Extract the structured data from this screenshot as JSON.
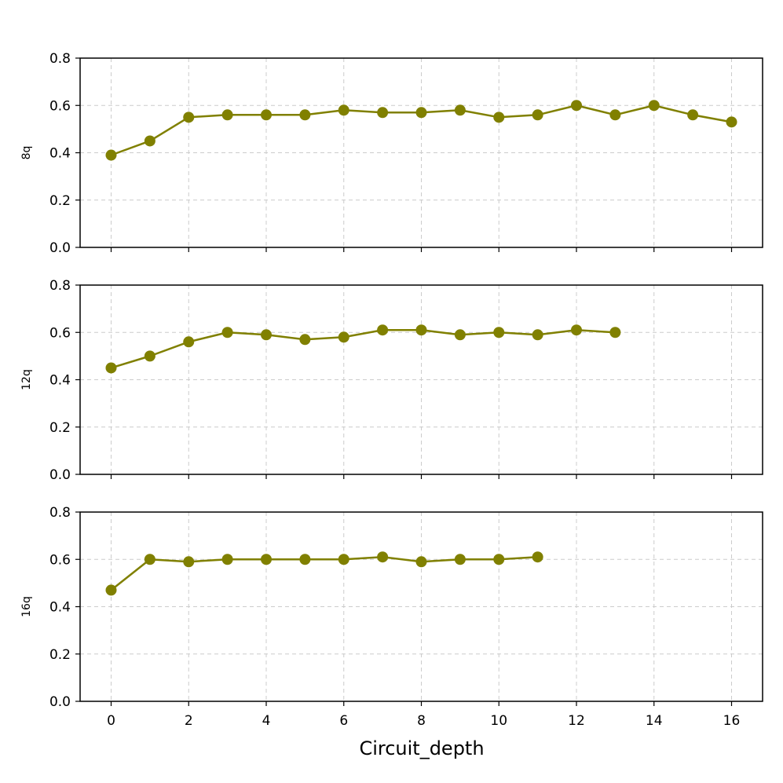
{
  "figure": {
    "line_color": "#808000",
    "grid_color": "#cccccc"
  },
  "chart_data": [
    {
      "type": "line",
      "ylabel": "8q",
      "xlabel": "",
      "x": [
        0,
        1,
        2,
        3,
        4,
        5,
        6,
        7,
        8,
        9,
        10,
        11,
        12,
        13,
        14,
        15,
        16
      ],
      "series": [
        {
          "values": [
            0.39,
            0.45,
            0.55,
            0.56,
            0.56,
            0.56,
            0.58,
            0.57,
            0.57,
            0.58,
            0.55,
            0.56,
            0.6,
            0.56,
            0.6,
            0.56,
            0.53
          ]
        }
      ],
      "xlim": [
        -0.8,
        16.8
      ],
      "ylim": [
        0.0,
        0.8
      ],
      "yticks": [
        "0.0",
        "0.2",
        "0.4",
        "0.6",
        "0.8"
      ],
      "xticks": [
        0,
        2,
        4,
        6,
        8,
        10,
        12,
        14,
        16
      ],
      "grid": true
    },
    {
      "type": "line",
      "ylabel": "12q",
      "xlabel": "",
      "x": [
        0,
        1,
        2,
        3,
        4,
        5,
        6,
        7,
        8,
        9,
        10,
        11,
        12,
        13
      ],
      "series": [
        {
          "values": [
            0.45,
            0.5,
            0.56,
            0.6,
            0.59,
            0.57,
            0.58,
            0.61,
            0.61,
            0.59,
            0.6,
            0.59,
            0.61,
            0.6
          ]
        }
      ],
      "xlim": [
        -0.8,
        16.8
      ],
      "ylim": [
        0.0,
        0.8
      ],
      "yticks": [
        "0.0",
        "0.2",
        "0.4",
        "0.6",
        "0.8"
      ],
      "xticks": [
        0,
        2,
        4,
        6,
        8,
        10,
        12,
        14,
        16
      ],
      "grid": true
    },
    {
      "type": "line",
      "ylabel": "16q",
      "xlabel": "Circuit_depth",
      "x": [
        0,
        1,
        2,
        3,
        4,
        5,
        6,
        7,
        8,
        9,
        10,
        11
      ],
      "series": [
        {
          "values": [
            0.47,
            0.6,
            0.59,
            0.6,
            0.6,
            0.6,
            0.6,
            0.61,
            0.59,
            0.6,
            0.6,
            0.61
          ]
        }
      ],
      "xlim": [
        -0.8,
        16.8
      ],
      "ylim": [
        0.0,
        0.8
      ],
      "yticks": [
        "0.0",
        "0.2",
        "0.4",
        "0.6",
        "0.8"
      ],
      "xticks": [
        "0",
        "2",
        "4",
        "6",
        "8",
        "10",
        "12",
        "14",
        "16"
      ],
      "grid": true
    }
  ]
}
